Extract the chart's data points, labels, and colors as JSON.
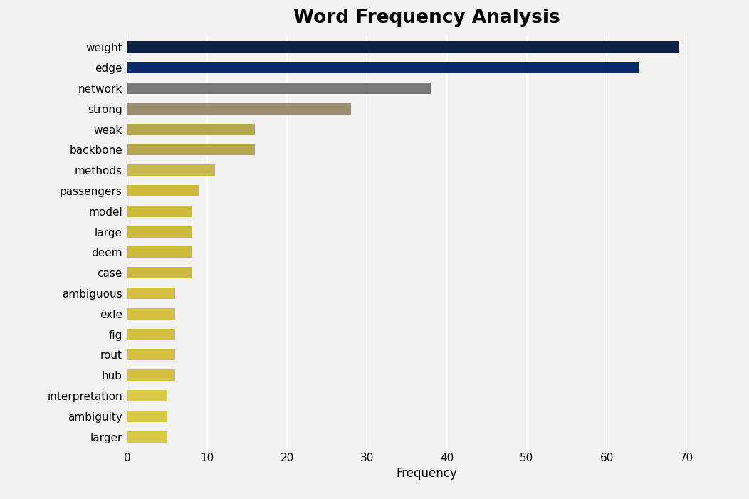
{
  "title": "Word Frequency Analysis",
  "categories": [
    "weight",
    "edge",
    "network",
    "strong",
    "weak",
    "backbone",
    "methods",
    "passengers",
    "model",
    "large",
    "deem",
    "case",
    "ambiguous",
    "exle",
    "fig",
    "rout",
    "hub",
    "interpretation",
    "ambiguity",
    "larger"
  ],
  "values": [
    69,
    64,
    38,
    28,
    16,
    16,
    11,
    9,
    8,
    8,
    8,
    8,
    6,
    6,
    6,
    6,
    6,
    5,
    5,
    5
  ],
  "colors": [
    "#0d2245",
    "#0d2b6b",
    "#787878",
    "#9b8e6e",
    "#b5a54e",
    "#b5a54e",
    "#c8b84a",
    "#ccb83a",
    "#ccb83a",
    "#ccb83a",
    "#ccb83a",
    "#ccb83a",
    "#d4bf40",
    "#d4bf40",
    "#d4bf40",
    "#d4bf40",
    "#d4bf40",
    "#d9c845",
    "#d9c845",
    "#d9c845"
  ],
  "xlabel": "Frequency",
  "xlim": [
    0,
    75
  ],
  "xticks": [
    0,
    10,
    20,
    30,
    40,
    50,
    60,
    70
  ],
  "background_color": "#f2f2f2",
  "title_fontsize": 19,
  "label_fontsize": 12,
  "tick_fontsize": 11,
  "bar_height": 0.55
}
